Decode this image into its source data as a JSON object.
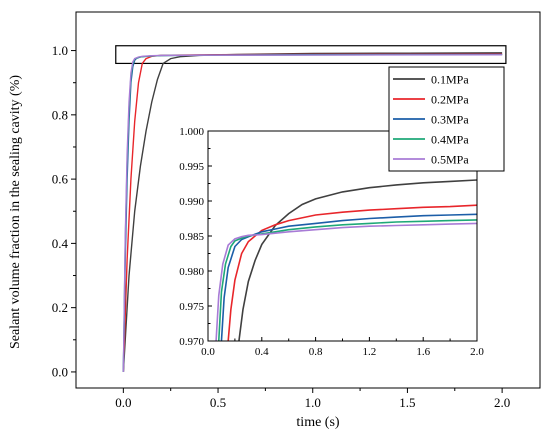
{
  "chart_data": [
    {
      "id": "main",
      "type": "line",
      "xlabel": "time (s)",
      "ylabel": "Sealant volume fraction in the sealing cavity (%)",
      "xlim": [
        -0.25,
        2.2
      ],
      "ylim": [
        -0.05,
        1.12
      ],
      "x_ticks": [
        0.0,
        0.5,
        1.0,
        1.5,
        2.0
      ],
      "x_tick_labels": [
        "0.0",
        "0.5",
        "1.0",
        "1.5",
        "2.0"
      ],
      "y_ticks": [
        0.0,
        0.2,
        0.4,
        0.6,
        0.8,
        1.0
      ],
      "y_tick_labels": [
        "0.0",
        "0.2",
        "0.4",
        "0.6",
        "0.8",
        "1.0"
      ],
      "grid": false,
      "highlight_box": {
        "x": [
          -0.04,
          2.02
        ],
        "y": [
          0.96,
          1.015
        ]
      },
      "series": [
        {
          "name": "0.1MPa",
          "color": "#404040",
          "x": [
            0.0,
            0.03,
            0.06,
            0.09,
            0.12,
            0.15,
            0.18,
            0.21,
            0.25,
            0.3,
            0.4,
            0.6,
            1.0,
            1.5,
            2.0
          ],
          "y": [
            0.0,
            0.3,
            0.5,
            0.64,
            0.75,
            0.84,
            0.91,
            0.96,
            0.975,
            0.981,
            0.985,
            0.988,
            0.991,
            0.992,
            0.993
          ]
        },
        {
          "name": "0.2MPa",
          "color": "#e8262b",
          "x": [
            0.0,
            0.02,
            0.04,
            0.06,
            0.08,
            0.1,
            0.12,
            0.15,
            0.2,
            0.3,
            0.5,
            1.0,
            1.5,
            2.0
          ],
          "y": [
            0.0,
            0.35,
            0.6,
            0.78,
            0.9,
            0.96,
            0.975,
            0.982,
            0.985,
            0.986,
            0.987,
            0.988,
            0.9888,
            0.9893
          ]
        },
        {
          "name": "0.3MPa",
          "color": "#1c5ea8",
          "x": [
            0.0,
            0.01,
            0.02,
            0.03,
            0.04,
            0.05,
            0.06,
            0.07,
            0.09,
            0.12,
            0.2,
            0.4,
            1.0,
            2.0
          ],
          "y": [
            0.0,
            0.35,
            0.6,
            0.78,
            0.9,
            0.95,
            0.97,
            0.976,
            0.98,
            0.982,
            0.9845,
            0.9858,
            0.987,
            0.988
          ]
        },
        {
          "name": "0.4MPa",
          "color": "#1fa878",
          "x": [
            0.0,
            0.01,
            0.02,
            0.03,
            0.04,
            0.05,
            0.06,
            0.08,
            0.1,
            0.15,
            0.2,
            0.4,
            1.0,
            2.0
          ],
          "y": [
            0.0,
            0.4,
            0.65,
            0.82,
            0.92,
            0.96,
            0.974,
            0.979,
            0.981,
            0.9835,
            0.9845,
            0.9855,
            0.9865,
            0.9873
          ]
        },
        {
          "name": "0.5MPa",
          "color": "#a87bd6",
          "x": [
            0.0,
            0.01,
            0.02,
            0.03,
            0.04,
            0.05,
            0.06,
            0.08,
            0.1,
            0.15,
            0.2,
            0.4,
            1.0,
            2.0
          ],
          "y": [
            0.0,
            0.42,
            0.68,
            0.84,
            0.93,
            0.965,
            0.975,
            0.98,
            0.982,
            0.984,
            0.9848,
            0.9855,
            0.986,
            0.9868
          ]
        }
      ]
    },
    {
      "id": "inset",
      "type": "line",
      "xlim": [
        0.0,
        2.0
      ],
      "ylim": [
        0.97,
        1.0
      ],
      "x_ticks": [
        0.0,
        0.4,
        0.8,
        1.2,
        1.6,
        2.0
      ],
      "x_tick_labels": [
        "0.0",
        "0.4",
        "0.8",
        "1.2",
        "1.6",
        "2.0"
      ],
      "y_ticks": [
        0.97,
        0.975,
        0.98,
        0.985,
        0.99,
        0.995,
        1.0
      ],
      "y_tick_labels": [
        "0.970",
        "0.975",
        "0.980",
        "0.985",
        "0.990",
        "0.995",
        "1.000"
      ],
      "grid": false,
      "legend": {
        "placement": "top-right",
        "entries": [
          "0.1MPa",
          "0.2MPa",
          "0.3MPa",
          "0.4MPa",
          "0.5MPa"
        ]
      },
      "series": [
        {
          "name": "0.1MPa",
          "color": "#404040",
          "x": [
            0.23,
            0.26,
            0.3,
            0.35,
            0.4,
            0.5,
            0.6,
            0.7,
            0.8,
            1.0,
            1.2,
            1.4,
            1.6,
            1.8,
            2.0
          ],
          "y": [
            0.97,
            0.9745,
            0.9785,
            0.9815,
            0.9838,
            0.9865,
            0.9882,
            0.9895,
            0.9903,
            0.9913,
            0.9919,
            0.9923,
            0.9926,
            0.9928,
            0.993
          ]
        },
        {
          "name": "0.2MPa",
          "color": "#e8262b",
          "x": [
            0.15,
            0.17,
            0.2,
            0.25,
            0.3,
            0.4,
            0.5,
            0.6,
            0.8,
            1.0,
            1.2,
            1.4,
            1.6,
            1.8,
            2.0
          ],
          "y": [
            0.97,
            0.9745,
            0.9787,
            0.9825,
            0.9842,
            0.9858,
            0.9866,
            0.9872,
            0.988,
            0.9884,
            0.9887,
            0.9889,
            0.9891,
            0.9892,
            0.9894
          ]
        },
        {
          "name": "0.3MPa",
          "color": "#1c5ea8",
          "x": [
            0.1,
            0.12,
            0.15,
            0.2,
            0.25,
            0.3,
            0.4,
            0.5,
            0.6,
            0.8,
            1.0,
            1.2,
            1.4,
            1.6,
            1.8,
            2.0
          ],
          "y": [
            0.97,
            0.9762,
            0.9805,
            0.9835,
            0.9845,
            0.9849,
            0.9856,
            0.986,
            0.9864,
            0.9868,
            0.9872,
            0.9875,
            0.9877,
            0.9879,
            0.988,
            0.9881
          ]
        },
        {
          "name": "0.4MPa",
          "color": "#1fa878",
          "x": [
            0.08,
            0.1,
            0.13,
            0.17,
            0.2,
            0.25,
            0.3,
            0.4,
            0.5,
            0.6,
            0.8,
            1.0,
            1.2,
            1.4,
            1.6,
            1.8,
            2.0
          ],
          "y": [
            0.97,
            0.977,
            0.981,
            0.9835,
            0.9843,
            0.9847,
            0.985,
            0.9853,
            0.9856,
            0.9859,
            0.9863,
            0.9866,
            0.9868,
            0.987,
            0.9871,
            0.9872,
            0.9873
          ]
        },
        {
          "name": "0.5MPa",
          "color": "#a87bd6",
          "x": [
            0.06,
            0.08,
            0.11,
            0.15,
            0.2,
            0.25,
            0.3,
            0.4,
            0.5,
            0.6,
            0.8,
            1.0,
            1.2,
            1.4,
            1.6,
            1.8,
            2.0
          ],
          "y": [
            0.97,
            0.9765,
            0.981,
            0.9837,
            0.9846,
            0.9849,
            0.9851,
            0.9852,
            0.9854,
            0.9856,
            0.9859,
            0.9862,
            0.9864,
            0.9865,
            0.9866,
            0.9867,
            0.9868
          ]
        }
      ]
    }
  ]
}
